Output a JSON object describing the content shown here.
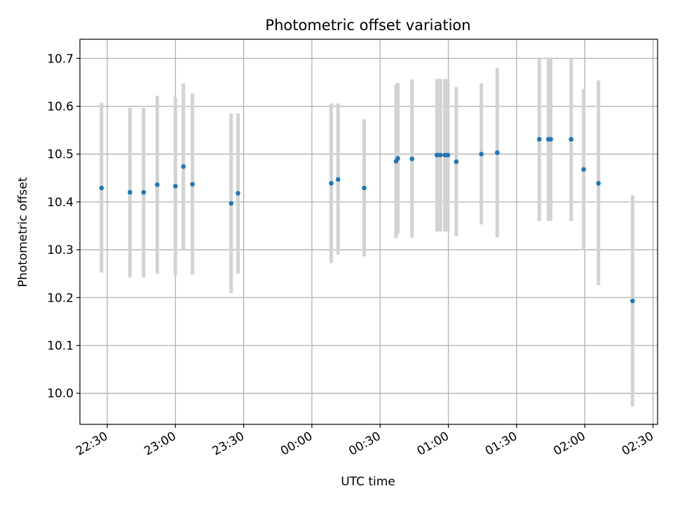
{
  "chart_data": {
    "type": "scatter",
    "title": "Photometric offset variation",
    "xlabel": "UTC time",
    "ylabel": "Photometric offset",
    "x_axis_kind": "time",
    "xlim": [
      "22:18",
      "02:32"
    ],
    "ylim": [
      9.935,
      10.74
    ],
    "grid": true,
    "x_ticks": [
      "22:30",
      "23:00",
      "23:30",
      "00:00",
      "00:30",
      "01:00",
      "01:30",
      "02:00",
      "02:30"
    ],
    "y_ticks": [
      "10.0",
      "10.1",
      "10.2",
      "10.3",
      "10.4",
      "10.5",
      "10.6",
      "10.7"
    ],
    "errorbar_color": "#d3d3d3",
    "point_color": "#1f77b4",
    "points": [
      {
        "x": "22:27.5",
        "y": 10.429,
        "ylo": 10.252,
        "yhi": 10.607
      },
      {
        "x": "22:40.0",
        "y": 10.42,
        "ylo": 10.242,
        "yhi": 10.597
      },
      {
        "x": "22:46.0",
        "y": 10.42,
        "ylo": 10.242,
        "yhi": 10.597
      },
      {
        "x": "22:52.0",
        "y": 10.436,
        "ylo": 10.25,
        "yhi": 10.622
      },
      {
        "x": "23:00.0",
        "y": 10.433,
        "ylo": 10.247,
        "yhi": 10.619
      },
      {
        "x": "23:03.5",
        "y": 10.474,
        "ylo": 10.3,
        "yhi": 10.648
      },
      {
        "x": "23:07.5",
        "y": 10.437,
        "ylo": 10.248,
        "yhi": 10.627
      },
      {
        "x": "23:24.5",
        "y": 10.397,
        "ylo": 10.209,
        "yhi": 10.585
      },
      {
        "x": "23:27.5",
        "y": 10.418,
        "ylo": 10.25,
        "yhi": 10.585
      },
      {
        "x": "00:08.5",
        "y": 10.439,
        "ylo": 10.272,
        "yhi": 10.606
      },
      {
        "x": "00:11.5",
        "y": 10.447,
        "ylo": 10.29,
        "yhi": 10.606
      },
      {
        "x": "00:23.0",
        "y": 10.429,
        "ylo": 10.286,
        "yhi": 10.573
      },
      {
        "x": "00:37.0",
        "y": 10.485,
        "ylo": 10.324,
        "yhi": 10.645
      },
      {
        "x": "00:37.8",
        "y": 10.491,
        "ylo": 10.333,
        "yhi": 10.649
      },
      {
        "x": "00:44.0",
        "y": 10.49,
        "ylo": 10.325,
        "yhi": 10.656
      },
      {
        "x": "00:55.0",
        "y": 10.498,
        "ylo": 10.338,
        "yhi": 10.657
      },
      {
        "x": "00:56.5",
        "y": 10.498,
        "ylo": 10.338,
        "yhi": 10.657
      },
      {
        "x": "00:58.5",
        "y": 10.498,
        "ylo": 10.338,
        "yhi": 10.657
      },
      {
        "x": "00:59.8",
        "y": 10.498,
        "ylo": 10.338,
        "yhi": 10.657
      },
      {
        "x": "01:03.5",
        "y": 10.484,
        "ylo": 10.328,
        "yhi": 10.64
      },
      {
        "x": "01:14.5",
        "y": 10.5,
        "ylo": 10.353,
        "yhi": 10.648
      },
      {
        "x": "01:21.5",
        "y": 10.503,
        "ylo": 10.326,
        "yhi": 10.68
      },
      {
        "x": "01:40.0",
        "y": 10.531,
        "ylo": 10.36,
        "yhi": 10.702
      },
      {
        "x": "01:44.0",
        "y": 10.531,
        "ylo": 10.36,
        "yhi": 10.702
      },
      {
        "x": "01:45.0",
        "y": 10.531,
        "ylo": 10.36,
        "yhi": 10.702
      },
      {
        "x": "01:54.0",
        "y": 10.531,
        "ylo": 10.36,
        "yhi": 10.702
      },
      {
        "x": "01:59.5",
        "y": 10.468,
        "ylo": 10.3,
        "yhi": 10.636
      },
      {
        "x": "02:06.0",
        "y": 10.439,
        "ylo": 10.226,
        "yhi": 10.654
      },
      {
        "x": "02:21.0",
        "y": 10.193,
        "ylo": 9.972,
        "yhi": 10.414
      }
    ]
  }
}
